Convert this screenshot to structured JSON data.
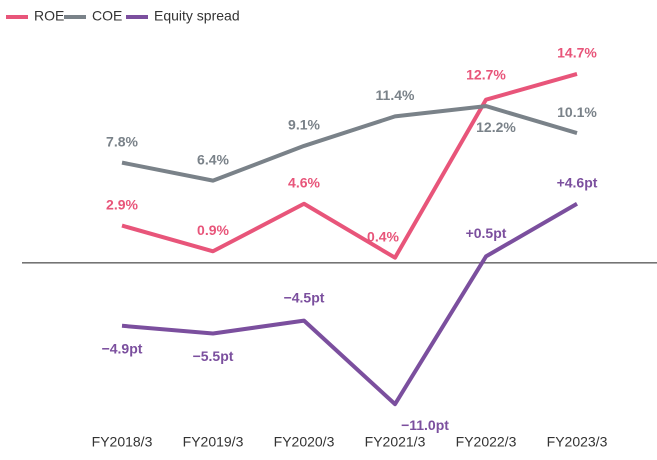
{
  "chart_data": {
    "type": "line",
    "categories": [
      "FY2018/3",
      "FY2019/3",
      "FY2020/3",
      "FY2021/3",
      "FY2022/3",
      "FY2023/3"
    ],
    "series": [
      {
        "name": "ROE",
        "color": "#e8557a",
        "values": [
          2.9,
          0.9,
          4.6,
          0.4,
          12.7,
          14.7
        ],
        "value_labels": [
          "2.9%",
          "0.9%",
          "4.6%",
          "0.4%",
          "12.7%",
          "14.7%"
        ]
      },
      {
        "name": "COE",
        "color": "#7a8289",
        "values": [
          7.8,
          6.4,
          9.1,
          11.4,
          12.2,
          10.1
        ],
        "value_labels": [
          "7.8%",
          "6.4%",
          "9.1%",
          "11.4%",
          "12.2%",
          "10.1%"
        ]
      },
      {
        "name": "Equity spread",
        "color": "#7b4f9e",
        "values": [
          -4.9,
          -5.5,
          -4.5,
          -11.0,
          0.5,
          4.6
        ],
        "value_labels": [
          "−4.9pt",
          "−5.5pt",
          "−4.5pt",
          "−11.0pt",
          "+0.5pt",
          "+4.6pt"
        ]
      }
    ],
    "ylim": [
      -12,
      17.5
    ]
  }
}
